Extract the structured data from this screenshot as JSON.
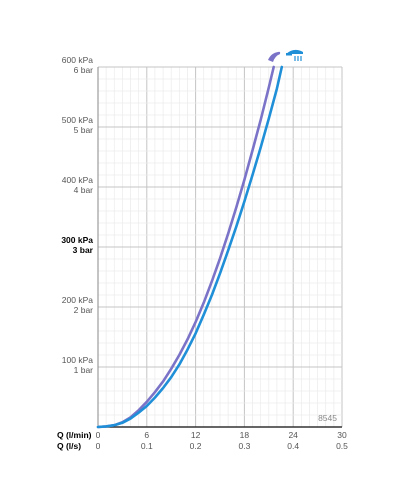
{
  "chart_data": {
    "type": "line",
    "x_label_primary": "Q (l/min)",
    "x_label_secondary": "Q (l/s)",
    "x_ticks_primary": [
      "0",
      "6",
      "12",
      "18",
      "24",
      "30"
    ],
    "x_ticks_secondary": [
      "0",
      "0.1",
      "0.2",
      "0.3",
      "0.4",
      "0.5"
    ],
    "xlim": [
      0,
      30
    ],
    "ylim": [
      0,
      600
    ],
    "y_ticks": [
      {
        "value": 100,
        "kpa": "100 kPa",
        "bar": "1 bar",
        "bold": false
      },
      {
        "value": 200,
        "kpa": "200 kPa",
        "bar": "2 bar",
        "bold": false
      },
      {
        "value": 300,
        "kpa": "300 kPa",
        "bar": "3 bar",
        "bold": true
      },
      {
        "value": 400,
        "kpa": "400 kPa",
        "bar": "4 bar",
        "bold": false
      },
      {
        "value": 500,
        "kpa": "500 kPa",
        "bar": "5 bar",
        "bold": false
      },
      {
        "value": 600,
        "kpa": "600 kPa",
        "bar": "6 bar",
        "bold": false
      }
    ],
    "grid": true,
    "code_label": "8545",
    "series": [
      {
        "color": "#7a73c8",
        "icon": "shower-head-icon",
        "points": [
          [
            0,
            0
          ],
          [
            1,
            1
          ],
          [
            2,
            3
          ],
          [
            3,
            8
          ],
          [
            4,
            16
          ],
          [
            5,
            28
          ],
          [
            6,
            42
          ],
          [
            7,
            58
          ],
          [
            8,
            76
          ],
          [
            9,
            97
          ],
          [
            10,
            120
          ],
          [
            11,
            146
          ],
          [
            12,
            175
          ],
          [
            13,
            207
          ],
          [
            14,
            243
          ],
          [
            15,
            281
          ],
          [
            16,
            322
          ],
          [
            17,
            366
          ],
          [
            18,
            412
          ],
          [
            19,
            461
          ],
          [
            20,
            512
          ],
          [
            21,
            566
          ],
          [
            21.6,
            600
          ]
        ]
      },
      {
        "color": "#1f8fd8",
        "icon": "shower-head-icon",
        "points": [
          [
            0,
            0
          ],
          [
            1,
            1
          ],
          [
            2,
            3
          ],
          [
            3,
            7
          ],
          [
            4,
            14
          ],
          [
            5,
            24
          ],
          [
            6,
            35
          ],
          [
            7,
            49
          ],
          [
            8,
            65
          ],
          [
            9,
            83
          ],
          [
            10,
            104
          ],
          [
            11,
            129
          ],
          [
            12,
            156
          ],
          [
            13,
            187
          ],
          [
            14,
            220
          ],
          [
            15,
            256
          ],
          [
            16,
            294
          ],
          [
            17,
            334
          ],
          [
            18,
            376
          ],
          [
            19,
            420
          ],
          [
            20,
            466
          ],
          [
            21,
            514
          ],
          [
            22,
            564
          ],
          [
            22.6,
            600
          ]
        ]
      }
    ]
  }
}
